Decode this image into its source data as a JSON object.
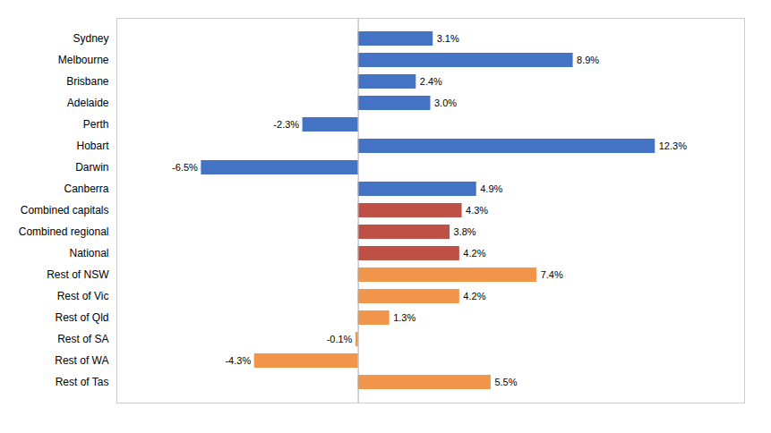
{
  "chart_data": {
    "type": "bar",
    "orientation": "horizontal",
    "categories": [
      "Sydney",
      "Melbourne",
      "Brisbane",
      "Adelaide",
      "Perth",
      "Hobart",
      "Darwin",
      "Canberra",
      "Combined capitals",
      "Combined regional",
      "National",
      "Rest of NSW",
      "Rest of Vic",
      "Rest of Qld",
      "Rest of SA",
      "Rest of WA",
      "Rest of Tas"
    ],
    "values": [
      3.1,
      8.9,
      2.4,
      3.0,
      -2.3,
      12.3,
      -6.5,
      4.9,
      4.3,
      3.8,
      4.2,
      7.4,
      4.2,
      1.3,
      -0.1,
      -4.3,
      5.5
    ],
    "value_labels": [
      "3.1%",
      "8.9%",
      "2.4%",
      "3.0%",
      "-2.3%",
      "12.3%",
      "-6.5%",
      "4.9%",
      "4.3%",
      "3.8%",
      "4.2%",
      "7.4%",
      "4.2%",
      "1.3%",
      "-0.1%",
      "-4.3%",
      "5.5%"
    ],
    "colors": [
      "#4472C4",
      "#4472C4",
      "#4472C4",
      "#4472C4",
      "#4472C4",
      "#4472C4",
      "#4472C4",
      "#4472C4",
      "#BE5045",
      "#BE5045",
      "#BE5045",
      "#F0954A",
      "#F0954A",
      "#F0954A",
      "#F0954A",
      "#F0954A",
      "#F0954A"
    ],
    "xlim": [
      -10,
      16
    ],
    "xticks": [],
    "data_labels": true,
    "tick_labels": "y",
    "grid": false
  }
}
